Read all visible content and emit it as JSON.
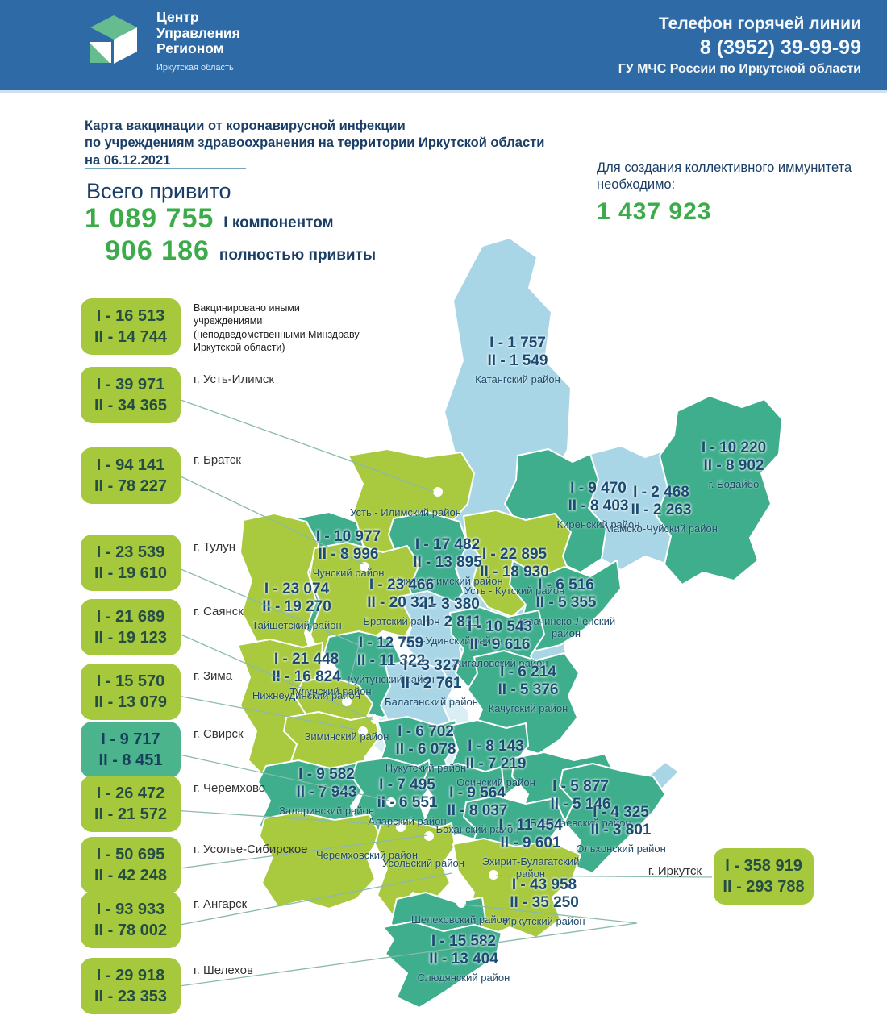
{
  "header": {
    "logo": {
      "line1": "Центр",
      "line2": "Управления",
      "line3": "Регионом",
      "subtitle": "Иркутская область"
    },
    "hotline": {
      "title": "Телефон горячей линии",
      "phone": "8 (3952) 39-99-99",
      "org": "ГУ МЧС России по Иркутской области"
    }
  },
  "title": {
    "line1": "Карта вакцинации от коронавирусной инфекции",
    "line2": "по учреждениям здравоохранения на территории Иркутской области",
    "line3": "на 06.12.2021"
  },
  "totals": {
    "heading": "Всего привито",
    "first_value": "1 089 755",
    "first_label": "I компонентом",
    "full_value": "906 186",
    "full_label": "полностью привиты"
  },
  "herd_immunity": {
    "line1": "Для создания коллективного иммунитета",
    "line2": "необходимо:",
    "value": "1 437 923"
  },
  "badges": [
    {
      "id": "other",
      "line1": "I - 16 513",
      "line2": "II - 14 744",
      "color": "green",
      "label": "Вакцинировано иными учреждениями (неподведомственными Минздраву Иркутской области)"
    },
    {
      "id": "ust-ilimsk",
      "line1": "I - 39 971",
      "line2": "II - 34 365",
      "color": "green",
      "label": "г. Усть-Илимск"
    },
    {
      "id": "bratsk",
      "line1": "I - 94 141",
      "line2": "II - 78 227",
      "color": "green",
      "label": "г. Братск"
    },
    {
      "id": "tulun",
      "line1": "I - 23 539",
      "line2": "II - 19 610",
      "color": "green",
      "label": "г. Тулун"
    },
    {
      "id": "sayansk",
      "line1": "I - 21 689",
      "line2": "II - 19 123",
      "color": "green",
      "label": "г. Саянск"
    },
    {
      "id": "zima",
      "line1": "I - 15 570",
      "line2": "II - 13 079",
      "color": "green",
      "label": "г. Зима"
    },
    {
      "id": "svirsk",
      "line1": "I - 9 717",
      "line2": "II - 8 451",
      "color": "teal",
      "label": "г. Свирск"
    },
    {
      "id": "cheremkhovo",
      "line1": "I - 26 472",
      "line2": "II - 21 572",
      "color": "green",
      "label": "г. Черемхово"
    },
    {
      "id": "usolye-sibirskoye",
      "line1": "I - 50 695",
      "line2": "II - 42 248",
      "color": "green",
      "label": "г. Усолье-Сибирское"
    },
    {
      "id": "angarsk",
      "line1": "I - 93 933",
      "line2": "II - 78 002",
      "color": "green",
      "label": "г. Ангарск"
    },
    {
      "id": "shelekhov",
      "line1": "I - 29 918",
      "line2": "II - 23 353",
      "color": "green",
      "label": "г. Шелехов"
    }
  ],
  "irkutsk_badge": {
    "line1": "I - 358 919",
    "line2": "II - 293 788",
    "label": "г. Иркутск",
    "color": "green"
  },
  "map": {
    "regions": [
      {
        "id": "katangsky",
        "name": "Катангский район",
        "line1": "I - 1 757",
        "line2": "II - 1 549"
      },
      {
        "id": "bodaybo",
        "name": "г. Бодайбо",
        "line1": "I - 10 220",
        "line2": "II - 8 902"
      },
      {
        "id": "kirensky",
        "name": "Киренский район",
        "line1": "I - 9 470",
        "line2": "II - 8 403"
      },
      {
        "id": "mamsko",
        "name": "Мамско-Чуйский район",
        "line1": "I - 2 468",
        "line2": "II - 2 263"
      },
      {
        "id": "ustilimskyr",
        "name": "Усть - Илимский район"
      },
      {
        "id": "chunsky",
        "name": "Чунский район",
        "line1": "I - 10 977",
        "line2": "II - 8 996"
      },
      {
        "id": "nizhneilimsky",
        "name": "Нижнеилимский район",
        "line1": "I - 17 482",
        "line2": "II - 13 895"
      },
      {
        "id": "ustkutsky",
        "name": "Усть - Кутский район",
        "line1": "I - 22 895",
        "line2": "II - 18 930"
      },
      {
        "id": "kazachinsko",
        "name": "Казачинско-Ленский район",
        "line1": "I - 6 516",
        "line2": "II - 5 355"
      },
      {
        "id": "taishetsky",
        "name": "Тайшетский район",
        "line1": "I - 23 074",
        "line2": "II - 19 270"
      },
      {
        "id": "bratsky",
        "name": "Братский район",
        "line1": "I - 23 466",
        "line2": "II - 20 321"
      },
      {
        "id": "ustudinsky",
        "name": "Усть-Удинский район",
        "line1": "I - 3 380",
        "line2": "II - 2 811"
      },
      {
        "id": "zhigalovsky",
        "name": "Жигаловский район",
        "line1": "I - 10 543",
        "line2": "II - 9 616"
      },
      {
        "id": "nizhneudinsky",
        "name": "Нижнеудинский район",
        "line1": "I - 21 448",
        "line2": "II - 16 824"
      },
      {
        "id": "kuytunsky",
        "name": "Куйтунский район",
        "line1": "I - 12 759",
        "line2": "II - 11 322"
      },
      {
        "id": "tulunsky",
        "name": "Тулунский район"
      },
      {
        "id": "balagansky",
        "name": "Балаганский район",
        "line1": "I - 3 327",
        "line2": "II - 2 761"
      },
      {
        "id": "kachugsky",
        "name": "Качугский район",
        "line1": "I - 6 214",
        "line2": "II - 5 376"
      },
      {
        "id": "ziminsky",
        "name": "Зиминский район"
      },
      {
        "id": "nukutsky",
        "name": "Нукутский район",
        "line1": "I - 6 702",
        "line2": "II - 6 078"
      },
      {
        "id": "osinsky",
        "name": "Осинский район",
        "line1": "I - 8 143",
        "line2": "II - 7 219"
      },
      {
        "id": "zalarinsky",
        "name": "Заларинский район",
        "line1": "I - 9 582",
        "line2": "II - 7 943"
      },
      {
        "id": "alarsky",
        "name": "Аларский район",
        "line1": "I - 7 495",
        "line2": "II - 6 551"
      },
      {
        "id": "bokhansky",
        "name": "Боханский район",
        "line1": "I - 9 564",
        "line2": "II - 8 037"
      },
      {
        "id": "bayandaevsky",
        "name": "Баяндаевский район",
        "line1": "I - 5 877",
        "line2": "II - 5 146"
      },
      {
        "id": "olkhonsky",
        "name": "Ольхонский район",
        "line1": "I - 4 325",
        "line2": "II - 3 801"
      },
      {
        "id": "ekhirit",
        "name": "Эхирит-Булагатский район",
        "line1": "I - 11 454",
        "line2": "II - 9 601"
      },
      {
        "id": "cheremkhovsky",
        "name": "Черемховский район"
      },
      {
        "id": "usolsky",
        "name": "Усольский район"
      },
      {
        "id": "irkutsky",
        "name": "Иркутский район",
        "line1": "I - 43 958",
        "line2": "II - 35 250"
      },
      {
        "id": "shelekhovsky",
        "name": "Шелеховский район"
      },
      {
        "id": "slyudyansky",
        "name": "Слюдянский район",
        "line1": "I - 15 582",
        "line2": "II - 13 404"
      }
    ]
  },
  "colors": {
    "header_bg": "#2e6ba6",
    "accent_green": "#3cab49",
    "navy": "#1b4a73",
    "badge_green": "#a5c83d",
    "badge_teal": "#4cb48c",
    "region_green": "#a9c93f",
    "region_teal": "#3fae8d",
    "region_lightblue": "#a9d6e6",
    "region_paleblue": "#d9eef5"
  }
}
